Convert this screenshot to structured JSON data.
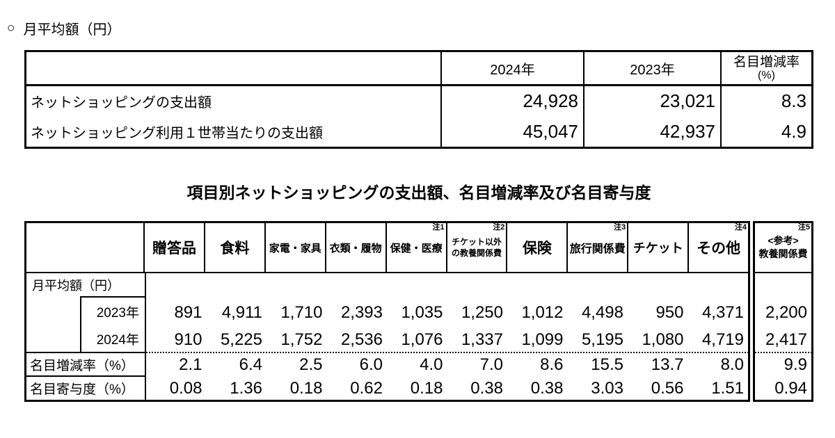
{
  "page_title": {
    "marker": "○",
    "text": "月平均額（円）"
  },
  "summary_table": {
    "headers": {
      "col_2024": "2024年",
      "col_2023": "2023年",
      "rate_line1": "名目増減率",
      "rate_line2": "(%)"
    },
    "rows": [
      {
        "label": "ネットショッピングの支出額",
        "v2024": "24,928",
        "v2023": "23,021",
        "rate": "8.3"
      },
      {
        "label": "ネットショッピング利用１世帯当たりの支出額",
        "v2024": "45,047",
        "v2023": "42,937",
        "rate": "4.9"
      }
    ]
  },
  "detail_table": {
    "title": "項目別ネットショッピングの支出額、名目増減率及び名目寄与度",
    "row_labels": {
      "monthly": "月平均額（円）",
      "y2023": "2023年",
      "y2024": "2024年",
      "rate": "名目増減率（%）",
      "contribution": "名目寄与度（%）"
    },
    "columns": [
      {
        "l1": "贈答品",
        "l2": "",
        "note": ""
      },
      {
        "l1": "食料",
        "l2": "",
        "note": ""
      },
      {
        "l1": "家電・家具",
        "l2": "",
        "note": ""
      },
      {
        "l1": "衣類・履物",
        "l2": "",
        "note": ""
      },
      {
        "l1": "保健・医療",
        "l2": "",
        "note": "注1"
      },
      {
        "l1": "チケット以外",
        "l2": "の教養関係費",
        "note": "注2"
      },
      {
        "l1": "保険",
        "l2": "",
        "note": ""
      },
      {
        "l1": "旅行関係費",
        "l2": "",
        "note": "注3"
      },
      {
        "l1": "チケット",
        "l2": "",
        "note": ""
      },
      {
        "l1": "その他",
        "l2": "",
        "note": "注4"
      },
      {
        "l1": "<参考>",
        "l2": "教養関係費",
        "note": "注5"
      }
    ],
    "values_2023": [
      "891",
      "4,911",
      "1,710",
      "2,393",
      "1,035",
      "1,250",
      "1,012",
      "4,498",
      "950",
      "4,371",
      "2,200"
    ],
    "values_2024": [
      "910",
      "5,225",
      "1,752",
      "2,536",
      "1,076",
      "1,337",
      "1,099",
      "5,195",
      "1,080",
      "4,719",
      "2,417"
    ],
    "values_rate": [
      "2.1",
      "6.4",
      "2.5",
      "6.0",
      "4.0",
      "7.0",
      "8.6",
      "15.5",
      "13.7",
      "8.0",
      "9.9"
    ],
    "values_contribution": [
      "0.08",
      "1.36",
      "0.18",
      "0.62",
      "0.18",
      "0.38",
      "0.38",
      "3.03",
      "0.56",
      "1.51",
      "0.94"
    ]
  },
  "colors": {
    "text": "#000000",
    "border": "#000000",
    "background": "#ffffff"
  }
}
